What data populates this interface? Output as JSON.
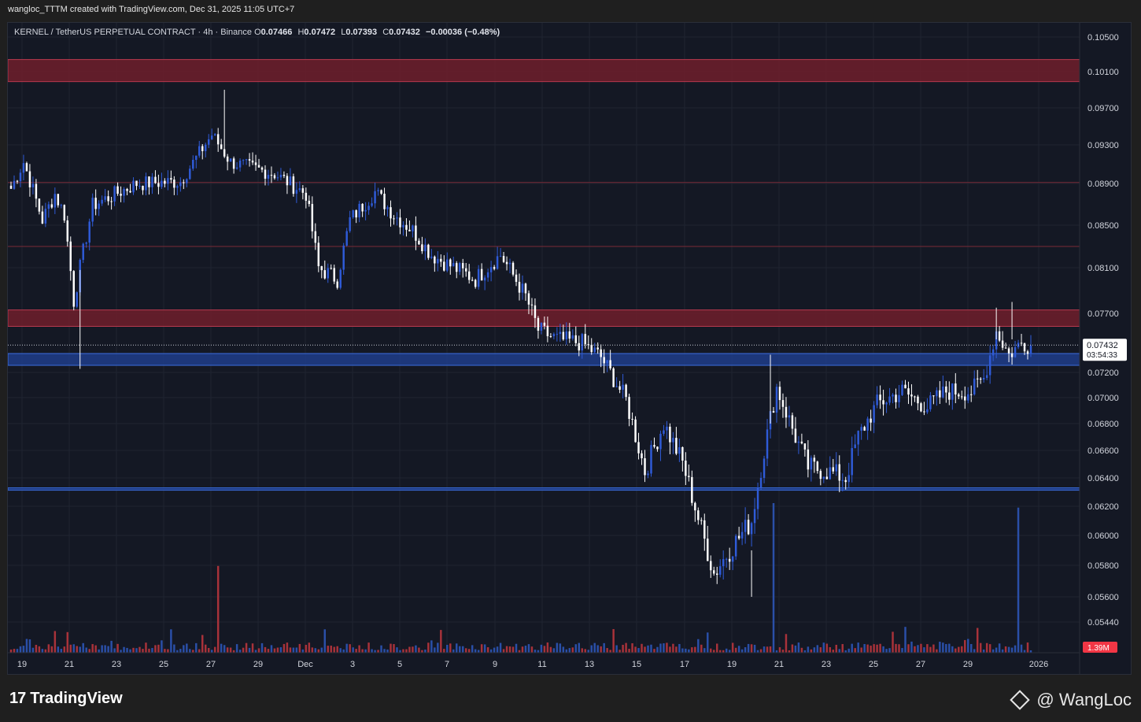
{
  "header": {
    "created_text": "wangloc_TTTM created with TradingView.com, Dec 31, 2025 11:05 UTC+7"
  },
  "symbol": {
    "name": "KERNEL / TetherUS PERPETUAL CONTRACT · 4h · Binance",
    "o_label": "O",
    "o_value": "0.07466",
    "h_label": "H",
    "h_value": "0.07472",
    "l_label": "L",
    "l_value": "0.07393",
    "c_label": "C",
    "c_value": "0.07432",
    "change": "−0.00036 (−0.48%)"
  },
  "price_badge": {
    "price": "0.07432",
    "countdown": "03:54:33"
  },
  "volume_badge": "1.39M",
  "footer": {
    "logo_text": "TradingView",
    "credit": "@ WangLoc"
  },
  "colors": {
    "background": "#141824",
    "up": "#2f5bd8",
    "down": "#ffffff",
    "vol_up": "#2a4fa8",
    "vol_down": "#a8323a",
    "resistance_zone": "#6e1e2c",
    "support_zone": "#1f3d8a",
    "level_line": "#7a2a36"
  },
  "chart_data": {
    "type": "candlestick",
    "timeframe": "4h",
    "y_ticks": [
      "0.10500",
      "0.10100",
      "0.09700",
      "0.09300",
      "0.08900",
      "0.08500",
      "0.08100",
      "0.07700",
      "0.07200",
      "0.07000",
      "0.06800",
      "0.06600",
      "0.06400",
      "0.06200",
      "0.06000",
      "0.05800",
      "0.05600",
      "0.05440"
    ],
    "x_ticks": [
      "19",
      "21",
      "23",
      "25",
      "27",
      "29",
      "Dec",
      "3",
      "5",
      "7",
      "9",
      "11",
      "13",
      "15",
      "17",
      "19",
      "21",
      "23",
      "25",
      "27",
      "29",
      "2026"
    ],
    "current_price": 0.07432,
    "zones": [
      {
        "kind": "resistance",
        "low": 0.0999,
        "high": 0.1024
      },
      {
        "kind": "resistance",
        "low": 0.0759,
        "high": 0.0773
      },
      {
        "kind": "support",
        "low": 0.0726,
        "high": 0.0736
      },
      {
        "kind": "support",
        "low": 0.0632,
        "high": 0.0633
      }
    ],
    "levels": [
      0.0891,
      0.083
    ],
    "anchors": [
      [
        0,
        0.0885
      ],
      [
        4,
        0.0912
      ],
      [
        10,
        0.0855
      ],
      [
        14,
        0.088
      ],
      [
        17,
        0.086
      ],
      [
        20,
        0.0781
      ],
      [
        26,
        0.0869
      ],
      [
        40,
        0.089
      ],
      [
        54,
        0.0892
      ],
      [
        64,
        0.0941
      ],
      [
        70,
        0.0912
      ],
      [
        84,
        0.09
      ],
      [
        94,
        0.088
      ],
      [
        98,
        0.081
      ],
      [
        104,
        0.08
      ],
      [
        108,
        0.0855
      ],
      [
        116,
        0.0882
      ],
      [
        122,
        0.086
      ],
      [
        128,
        0.0845
      ],
      [
        134,
        0.0822
      ],
      [
        140,
        0.0812
      ],
      [
        148,
        0.08
      ],
      [
        156,
        0.0822
      ],
      [
        164,
        0.0785
      ],
      [
        168,
        0.0756
      ],
      [
        174,
        0.0748
      ],
      [
        182,
        0.0745
      ],
      [
        188,
        0.0733
      ],
      [
        196,
        0.0698
      ],
      [
        202,
        0.0645
      ],
      [
        208,
        0.068
      ],
      [
        214,
        0.0651
      ],
      [
        220,
        0.0604
      ],
      [
        224,
        0.0575
      ],
      [
        230,
        0.0593
      ],
      [
        236,
        0.061
      ],
      [
        240,
        0.066
      ],
      [
        244,
        0.0708
      ],
      [
        250,
        0.067
      ],
      [
        254,
        0.0648
      ],
      [
        260,
        0.0645
      ],
      [
        266,
        0.064
      ],
      [
        270,
        0.067
      ],
      [
        276,
        0.0695
      ],
      [
        284,
        0.0705
      ],
      [
        292,
        0.0693
      ],
      [
        298,
        0.0705
      ],
      [
        306,
        0.0705
      ],
      [
        310,
        0.0715
      ],
      [
        314,
        0.0755
      ],
      [
        318,
        0.0735
      ],
      [
        322,
        0.0745
      ],
      [
        325,
        0.0743
      ]
    ],
    "volume_spikes": [
      {
        "index": 66,
        "value": 0.58,
        "up": false
      },
      {
        "index": 243,
        "value": 1.0,
        "up": true
      },
      {
        "index": 321,
        "value": 0.97,
        "up": true
      }
    ]
  }
}
